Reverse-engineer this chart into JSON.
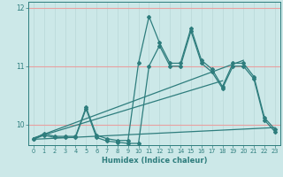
{
  "title": "",
  "xlabel": "Humidex (Indice chaleur)",
  "bg_color": "#cce8e8",
  "line_color": "#2e7d7d",
  "grid_color_h": "#e8a0a0",
  "grid_color_v": "#b8d8d8",
  "ylim": [
    9.65,
    12.1
  ],
  "xlim": [
    -0.5,
    23.5
  ],
  "yticks": [
    10,
    11,
    12
  ],
  "ytick_labels": [
    "10",
    "11",
    "12"
  ],
  "xticks": [
    0,
    1,
    2,
    3,
    4,
    5,
    6,
    7,
    8,
    9,
    10,
    11,
    12,
    13,
    14,
    15,
    16,
    17,
    18,
    19,
    20,
    21,
    22,
    23
  ],
  "series_main": [
    9.75,
    9.85,
    9.8,
    9.8,
    9.8,
    10.3,
    9.82,
    9.76,
    9.73,
    9.73,
    11.05,
    11.85,
    11.4,
    11.05,
    11.05,
    11.65,
    11.1,
    10.95,
    10.65,
    11.05,
    11.05,
    10.82,
    10.12,
    9.92
  ],
  "series2": [
    9.75,
    9.82,
    9.78,
    9.78,
    9.78,
    10.27,
    9.78,
    9.72,
    9.7,
    9.68,
    9.68,
    11.0,
    11.35,
    11.0,
    11.0,
    11.6,
    11.05,
    10.9,
    10.62,
    11.0,
    11.0,
    10.78,
    10.08,
    9.88
  ],
  "trend1_x": [
    0,
    20
  ],
  "trend1_y": [
    9.77,
    11.1
  ],
  "trend2_x": [
    0,
    18
  ],
  "trend2_y": [
    9.77,
    10.75
  ],
  "trend3_x": [
    0,
    23
  ],
  "trend3_y": [
    9.75,
    9.95
  ]
}
